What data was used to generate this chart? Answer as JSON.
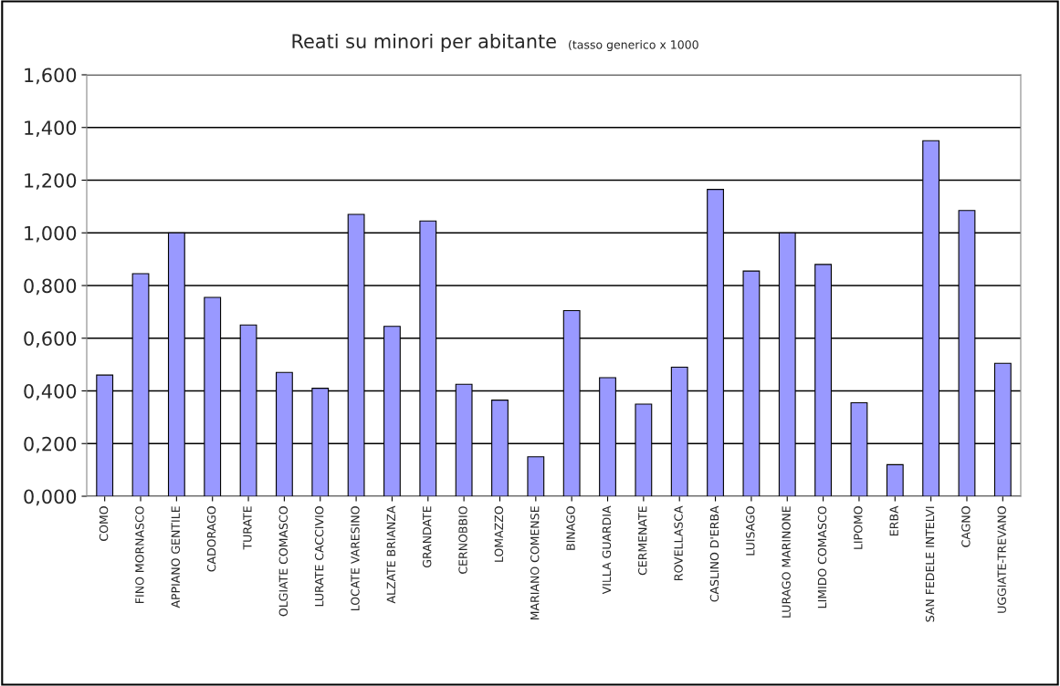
{
  "chart_data": {
    "type": "bar",
    "title": "Reati su minori per abitante",
    "subtitle": "(tasso generico x 1000",
    "categories": [
      "COMO",
      "FINO MORNASCO",
      "APPIANO GENTILE",
      "CADORAGO",
      "TURATE",
      "OLGIATE COMASCO",
      "LURATE CACCIVIO",
      "LOCATE VARESINO",
      "ALZATE BRIANZA",
      "GRANDATE",
      "CERNOBBIO",
      "LOMAZZO",
      "MARIANO COMENSE",
      "BINAGO",
      "VILLA GUARDIA",
      "CERMENATE",
      "ROVELLASCA",
      "CASLINO D'ERBA",
      "LUISAGO",
      "LURAGO MARINONE",
      "LIMIDO COMASCO",
      "LIPOMO",
      "ERBA",
      "SAN FEDELE INTELVI",
      "CAGNO",
      "UGGIATE-TREVANO"
    ],
    "values": [
      0.46,
      0.845,
      1.0,
      0.755,
      0.65,
      0.47,
      0.41,
      1.07,
      0.645,
      1.045,
      0.425,
      0.365,
      0.15,
      0.705,
      0.45,
      0.35,
      0.49,
      1.165,
      0.855,
      1.0,
      0.88,
      0.355,
      0.12,
      1.35,
      1.085,
      0.505
    ],
    "color": "#9999ff",
    "ylim": [
      0,
      1.6
    ],
    "yticks": [
      {
        "value": 0,
        "label": "0,000"
      },
      {
        "value": 0.2,
        "label": "0,200"
      },
      {
        "value": 0.4,
        "label": "0,400"
      },
      {
        "value": 0.6,
        "label": "0,600"
      },
      {
        "value": 0.8,
        "label": "0,800"
      },
      {
        "value": 1.0,
        "label": "1,000"
      },
      {
        "value": 1.2,
        "label": "1,200"
      },
      {
        "value": 1.4,
        "label": "1,400"
      },
      {
        "value": 1.6,
        "label": "1,600"
      }
    ],
    "grid": "y"
  }
}
